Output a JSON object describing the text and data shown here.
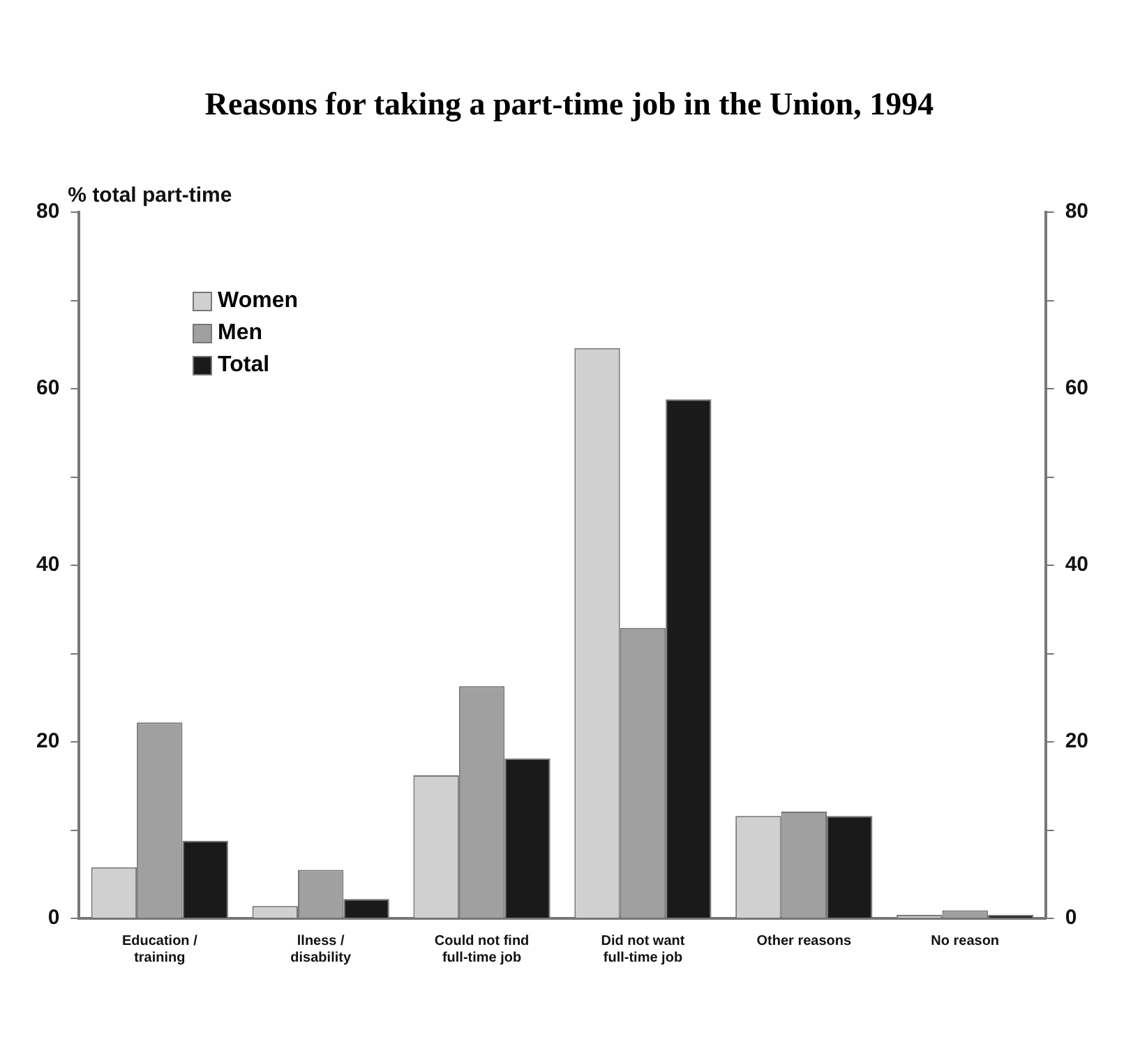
{
  "chart_data": {
    "type": "bar",
    "title": "Reasons for taking a part-time job in the Union, 1994",
    "ylabel": "% total part-time",
    "categories": [
      "Education /\ntraining",
      "llness /\ndisability",
      "Could not find\nfull-time job",
      "Did not want\nfull-time job",
      "Other reasons",
      "No reason"
    ],
    "series": [
      {
        "name": "Women",
        "color": "#d0d0d0",
        "values": [
          5.8,
          1.4,
          16.2,
          64.6,
          11.6,
          0.4
        ]
      },
      {
        "name": "Men",
        "color": "#a0a0a0",
        "values": [
          22.2,
          5.5,
          26.3,
          32.9,
          12.1,
          0.9
        ]
      },
      {
        "name": "Total",
        "color": "#1a1a1a",
        "values": [
          8.8,
          2.2,
          18.1,
          58.8,
          11.6,
          0.4
        ]
      }
    ],
    "ylim": [
      0,
      80
    ],
    "yticks": [
      0,
      {
        "value": 10,
        "label": null
      },
      20,
      {
        "value": 30,
        "label": null
      },
      40,
      {
        "value": 50,
        "label": null
      },
      60,
      {
        "value": 70,
        "label": null
      },
      80
    ],
    "y2lim": [
      0,
      80
    ],
    "y2ticks": [
      0,
      {
        "value": 10,
        "label": null
      },
      20,
      {
        "value": 30,
        "label": null
      },
      40,
      {
        "value": 50,
        "label": null
      },
      60,
      {
        "value": 70,
        "label": null
      },
      80
    ],
    "grid": false,
    "legend": "top left"
  }
}
